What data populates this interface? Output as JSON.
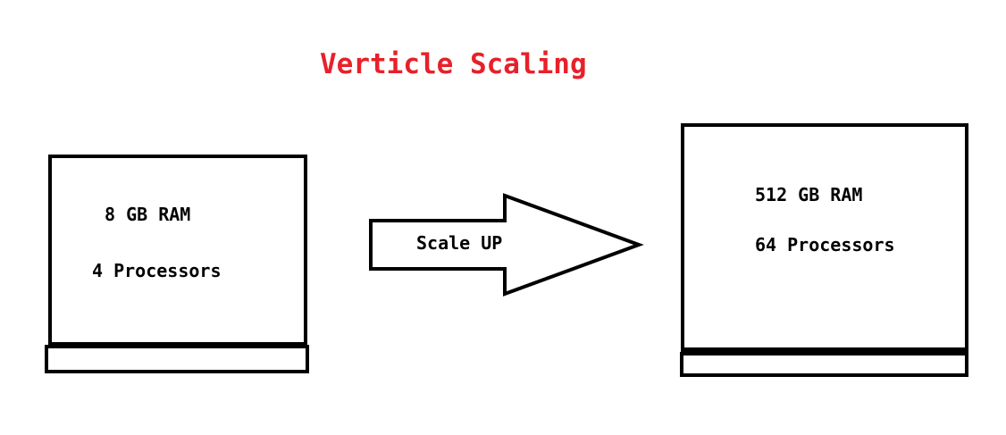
{
  "title": "Verticle Scaling",
  "colors": {
    "title": "#e8202a",
    "outline": "#000000",
    "background": "#ffffff"
  },
  "small_machine": {
    "ram": "8 GB RAM",
    "processors": "4 Processors"
  },
  "arrow": {
    "label": "Scale UP",
    "icon": "right-arrow-icon"
  },
  "large_machine": {
    "ram": "512 GB RAM",
    "processors": "64 Processors"
  }
}
